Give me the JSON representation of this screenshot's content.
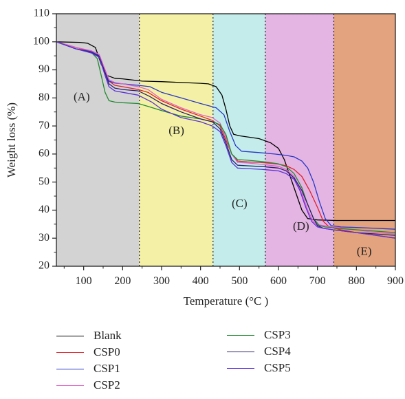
{
  "chart_data": {
    "type": "line",
    "xlabel": "Temperature (°C )",
    "ylabel": "Weight loss (%)",
    "xlim": [
      30,
      900
    ],
    "ylim": [
      20,
      110
    ],
    "xticks": [
      100,
      200,
      300,
      400,
      500,
      600,
      700,
      800,
      900
    ],
    "yticks": [
      20,
      30,
      40,
      50,
      60,
      70,
      80,
      90,
      100,
      110
    ],
    "grid": false,
    "legend_position": "bottom",
    "regions": [
      {
        "label": "(A)",
        "x_start": 30,
        "x_end": 243,
        "color": "#d3d3d3",
        "label_x": 95,
        "label_y": 80
      },
      {
        "label": "(B)",
        "x_start": 243,
        "x_end": 432,
        "color": "#f4f1a6",
        "label_x": 338,
        "label_y": 68
      },
      {
        "label": "(C)",
        "x_start": 432,
        "x_end": 566,
        "color": "#c3ecea",
        "label_x": 500,
        "label_y": 42
      },
      {
        "label": "(D)",
        "x_start": 566,
        "x_end": 742,
        "color": "#e4b4e2",
        "label_x": 658,
        "label_y": 34
      },
      {
        "label": "(E)",
        "x_start": 742,
        "x_end": 900,
        "color": "#e2a37e",
        "label_x": 820,
        "label_y": 25
      }
    ],
    "series": [
      {
        "name": "Blank",
        "color": "#000000",
        "x": [
          30,
          90,
          110,
          130,
          145,
          160,
          180,
          200,
          250,
          300,
          350,
          400,
          420,
          440,
          455,
          465,
          475,
          485,
          500,
          550,
          580,
          600,
          615,
          630,
          645,
          660,
          675,
          700,
          750,
          800,
          850,
          900
        ],
        "y": [
          100,
          99.8,
          99.5,
          98,
          92,
          88,
          87,
          86.8,
          86,
          85.8,
          85.5,
          85.2,
          85,
          84,
          81,
          76,
          70,
          67,
          66.5,
          65.5,
          64,
          62,
          58,
          52,
          46,
          40,
          37,
          36.5,
          36.3,
          36.3,
          36.3,
          36.3
        ]
      },
      {
        "name": "CSP0",
        "color": "#e0202a",
        "x": [
          30,
          80,
          120,
          140,
          155,
          165,
          180,
          200,
          240,
          265,
          300,
          350,
          400,
          430,
          450,
          465,
          480,
          495,
          520,
          550,
          580,
          600,
          620,
          640,
          660,
          680,
          700,
          715,
          730,
          760,
          800,
          850,
          900
        ],
        "y": [
          100,
          98,
          96.5,
          95,
          90,
          86,
          84.5,
          84,
          83,
          82,
          79,
          76,
          73.5,
          72,
          70,
          65,
          60,
          57.5,
          57.2,
          57,
          56.7,
          56.4,
          55.8,
          54.5,
          52,
          47,
          41,
          36,
          34,
          33,
          32,
          31,
          30
        ]
      },
      {
        "name": "CSP1",
        "color": "#2838c8",
        "x": [
          30,
          80,
          120,
          140,
          155,
          165,
          180,
          200,
          240,
          270,
          300,
          350,
          400,
          440,
          460,
          475,
          490,
          505,
          550,
          590,
          620,
          640,
          660,
          675,
          690,
          705,
          720,
          735,
          760,
          800,
          850,
          900
        ],
        "y": [
          100,
          97.5,
          96.5,
          95,
          89,
          86,
          85.3,
          85,
          84.5,
          84,
          82,
          80,
          78,
          76.5,
          74,
          68,
          63,
          61,
          60.5,
          60,
          59.5,
          59,
          57.5,
          55,
          50,
          43,
          37,
          34.5,
          34,
          33.8,
          33.5,
          33.2
        ]
      },
      {
        "name": "CSP2",
        "color": "#e060c8",
        "x": [
          30,
          80,
          120,
          140,
          155,
          165,
          180,
          200,
          240,
          265,
          300,
          350,
          400,
          430,
          450,
          465,
          480,
          495,
          520,
          560,
          600,
          620,
          640,
          660,
          675,
          690,
          700,
          715,
          740,
          800,
          850,
          900
        ],
        "y": [
          100,
          98,
          96.8,
          95.5,
          90,
          86.5,
          85.5,
          85,
          84,
          83,
          79.5,
          76.5,
          74,
          73,
          71,
          66,
          60,
          57,
          56.8,
          56.3,
          55.6,
          54.5,
          52,
          46,
          40,
          35.8,
          34.8,
          34.5,
          34,
          33,
          32,
          31.5
        ]
      },
      {
        "name": "CSP3",
        "color": "#208a30",
        "x": [
          30,
          80,
          120,
          135,
          145,
          155,
          165,
          180,
          200,
          240,
          265,
          300,
          350,
          400,
          430,
          450,
          465,
          480,
          495,
          520,
          560,
          600,
          620,
          640,
          660,
          675,
          690,
          705,
          720,
          750,
          800,
          850,
          900
        ],
        "y": [
          100,
          97.5,
          96.2,
          94,
          88,
          82,
          79,
          78.5,
          78.3,
          78,
          77,
          75.5,
          73.5,
          72.5,
          71.5,
          70.5,
          67,
          60,
          58,
          57.8,
          57.3,
          56.5,
          55.5,
          53,
          48,
          42,
          37,
          34.5,
          34,
          33.5,
          33,
          32.5,
          32
        ]
      },
      {
        "name": "CSP4",
        "color": "#2a1f6e",
        "x": [
          30,
          80,
          120,
          140,
          155,
          165,
          180,
          200,
          240,
          270,
          300,
          350,
          400,
          430,
          450,
          465,
          480,
          495,
          520,
          560,
          600,
          620,
          640,
          660,
          675,
          690,
          700,
          715,
          740,
          800,
          850,
          900
        ],
        "y": [
          100,
          97.5,
          96.2,
          94.8,
          89,
          85,
          83.5,
          83,
          82.5,
          80.5,
          78,
          75,
          72.5,
          71.5,
          69,
          64,
          58,
          56,
          55.8,
          55.5,
          55,
          54,
          51.5,
          47,
          42,
          37,
          34.5,
          33.5,
          33,
          32,
          31.5,
          31
        ]
      },
      {
        "name": "CSP5",
        "color": "#5a30d8",
        "x": [
          30,
          80,
          120,
          140,
          155,
          165,
          180,
          200,
          240,
          275,
          300,
          350,
          400,
          430,
          450,
          465,
          480,
          495,
          520,
          560,
          600,
          620,
          640,
          655,
          670,
          685,
          700,
          715,
          740,
          800,
          850,
          900
        ],
        "y": [
          100,
          97.5,
          96,
          94.5,
          88,
          84,
          82.5,
          82,
          81,
          78.5,
          76,
          73,
          71.5,
          70,
          68,
          63,
          57,
          55,
          54.8,
          54.5,
          54,
          53,
          51,
          47,
          41,
          36,
          34,
          33.5,
          33,
          32,
          31,
          30
        ]
      }
    ]
  }
}
